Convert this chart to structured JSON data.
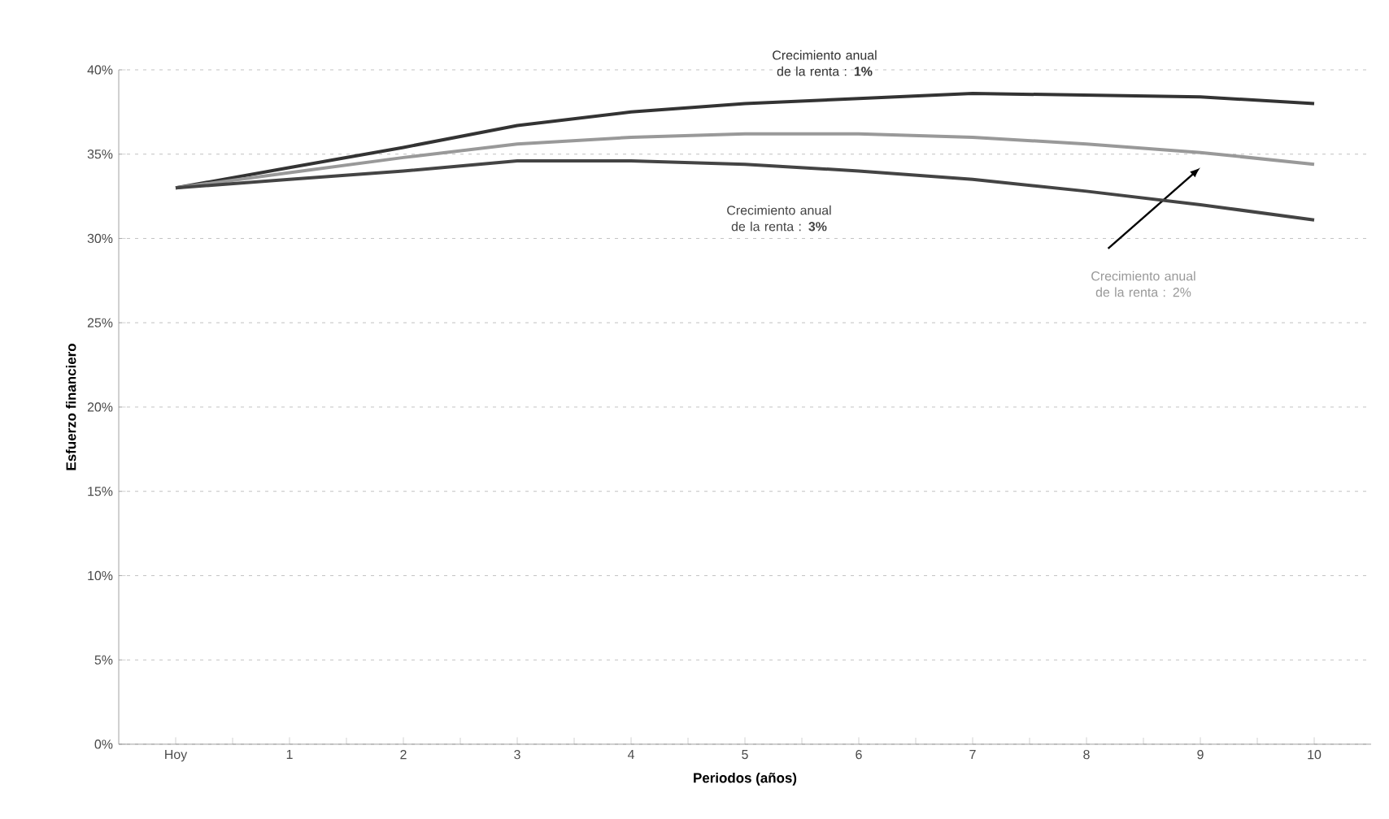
{
  "chart_data": {
    "type": "line",
    "xlabel": "Periodos (años)",
    "ylabel": "Esfuerzo financiero",
    "categories": [
      "Hoy",
      "1",
      "2",
      "3",
      "4",
      "5",
      "6",
      "7",
      "8",
      "9",
      "10"
    ],
    "series": [
      {
        "name": "Crecimiento anual de la renta : **1%**",
        "color": "#333333",
        "values": [
          33,
          34.2,
          35.4,
          36.7,
          37.5,
          38.0,
          38.3,
          38.6,
          38.5,
          38.4,
          38.0
        ]
      },
      {
        "name": "Crecimiento anual de la renta : 2%",
        "color": "#999999",
        "values": [
          33,
          33.9,
          34.8,
          35.6,
          36.0,
          36.2,
          36.2,
          36.0,
          35.6,
          35.1,
          34.4
        ]
      },
      {
        "name": "Crecimiento anual de la renta : **3%**",
        "color": "#444444",
        "values": [
          33,
          33.5,
          34.0,
          34.6,
          34.6,
          34.4,
          34.0,
          33.5,
          32.8,
          32.0,
          31.1
        ]
      }
    ],
    "ylim": [
      0,
      40
    ],
    "yticks": [
      {
        "value": 0,
        "label": "0%"
      },
      {
        "value": 5,
        "label": "5%"
      },
      {
        "value": 10,
        "label": "10%"
      },
      {
        "value": 15,
        "label": "15%"
      },
      {
        "value": 20,
        "label": "20%"
      },
      {
        "value": 25,
        "label": "25%"
      },
      {
        "value": 30,
        "label": "30%"
      },
      {
        "value": 35,
        "label": "35%"
      },
      {
        "value": 40,
        "label": "40%"
      }
    ],
    "grid": "y",
    "marker": "none",
    "line_style": "solid"
  }
}
